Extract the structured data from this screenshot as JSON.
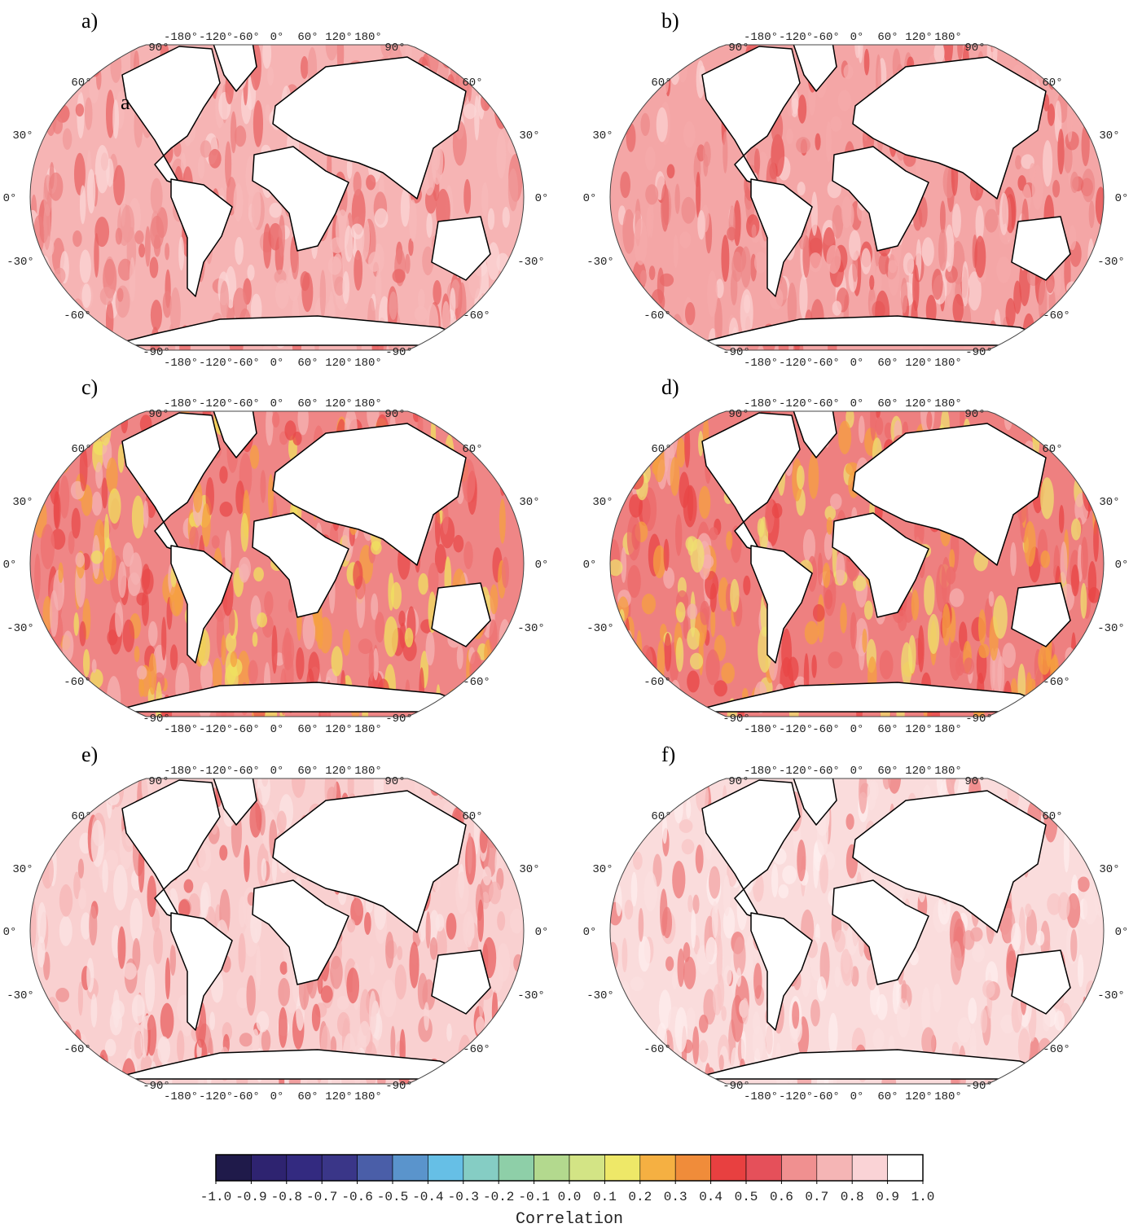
{
  "panels": [
    {
      "label": "a)",
      "annotation": "a"
    },
    {
      "label": "b)"
    },
    {
      "label": "c)"
    },
    {
      "label": "d)"
    },
    {
      "label": "e)"
    },
    {
      "label": "f)"
    }
  ],
  "map_labels": {
    "lon": [
      "-180°",
      "-120°",
      "-60°",
      "0°",
      "60°",
      "120°",
      "180°"
    ],
    "pole_north": "90°",
    "pole_south": "-90°",
    "lat": [
      "60°",
      "30°",
      "0°",
      "-30°",
      "-60°"
    ]
  },
  "colorbar": {
    "title": "Correlation",
    "ticks": [
      {
        "value": -1,
        "label": "-1.0"
      },
      {
        "value": -0.9,
        "label": "-0.9"
      },
      {
        "value": -0.8,
        "label": "-0.8"
      },
      {
        "value": -0.7,
        "label": "-0.7"
      },
      {
        "value": -0.6,
        "label": "-0.6"
      },
      {
        "value": -0.5,
        "label": "-0.5"
      },
      {
        "value": -0.4,
        "label": "-0.4"
      },
      {
        "value": -0.3,
        "label": "-0.3"
      },
      {
        "value": -0.2,
        "label": "-0.2"
      },
      {
        "value": -0.1,
        "label": "-0.1"
      },
      {
        "value": 0,
        "label": "0.0"
      },
      {
        "value": 0.1,
        "label": "0.1"
      },
      {
        "value": 0.2,
        "label": "0.2"
      },
      {
        "value": 0.3,
        "label": "0.3"
      },
      {
        "value": 0.4,
        "label": "0.4"
      },
      {
        "value": 0.5,
        "label": "0.5"
      },
      {
        "value": 0.6,
        "label": "0.6"
      },
      {
        "value": 0.7,
        "label": "0.7"
      },
      {
        "value": 0.8,
        "label": "0.8"
      },
      {
        "value": 0.9,
        "label": "0.9"
      },
      {
        "value": 1,
        "label": "1.0"
      }
    ],
    "colors": [
      "#1f1a4a",
      "#2e2370",
      "#332a80",
      "#3a3688",
      "#4a5ea8",
      "#5a94cc",
      "#66bfe6",
      "#85cdc4",
      "#8ecfa8",
      "#b3d98e",
      "#d3e485",
      "#eee868",
      "#f5b042",
      "#f08c3a",
      "#e84040",
      "#e5505a",
      "#f09090",
      "#f5b5b5",
      "#fad3d6",
      "#ffffff"
    ]
  }
}
